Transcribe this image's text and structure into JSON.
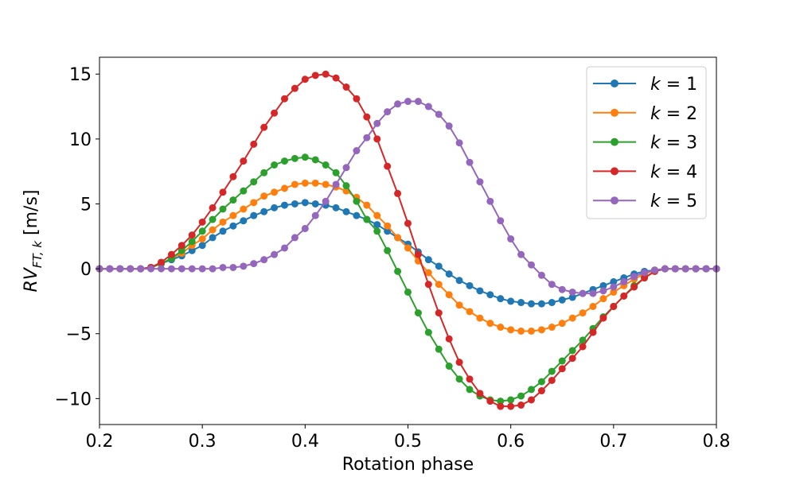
{
  "chart_data": {
    "type": "line",
    "title": "",
    "xlabel": "Rotation phase",
    "ylabel": "RV_{FT,k} [m/s]",
    "ylabel_parts": {
      "main": "RV",
      "sub": "FT, k",
      "unit": " [m/s]"
    },
    "xlim": [
      0.2,
      0.8
    ],
    "ylim": [
      -12,
      16.3
    ],
    "xticks": [
      0.2,
      0.3,
      0.4,
      0.5,
      0.6,
      0.7,
      0.8
    ],
    "xtick_labels": [
      "0.2",
      "0.3",
      "0.4",
      "0.5",
      "0.6",
      "0.7",
      "0.8"
    ],
    "yticks": [
      -10,
      -5,
      0,
      5,
      10,
      15
    ],
    "ytick_labels": [
      "−10",
      "−5",
      "0",
      "5",
      "10",
      "15"
    ],
    "grid": false,
    "legend_position": "top-right",
    "marker": "circle",
    "x": [
      0.2,
      0.21,
      0.22,
      0.23,
      0.24,
      0.25,
      0.26,
      0.27,
      0.28,
      0.29,
      0.3,
      0.31,
      0.32,
      0.33,
      0.34,
      0.35,
      0.36,
      0.37,
      0.38,
      0.39,
      0.4,
      0.41,
      0.42,
      0.43,
      0.44,
      0.45,
      0.46,
      0.47,
      0.48,
      0.49,
      0.5,
      0.51,
      0.52,
      0.53,
      0.54,
      0.55,
      0.56,
      0.57,
      0.58,
      0.59,
      0.6,
      0.61,
      0.62,
      0.63,
      0.64,
      0.65,
      0.66,
      0.67,
      0.68,
      0.69,
      0.7,
      0.71,
      0.72,
      0.73,
      0.74,
      0.75,
      0.76,
      0.77,
      0.78,
      0.79,
      0.8
    ],
    "series": [
      {
        "name": "k = 1",
        "legend_var": "k",
        "legend_value": "1",
        "color": "#1f77b4",
        "values": [
          0,
          0,
          0,
          0,
          0,
          0.1,
          0.4,
          0.7,
          1.0,
          1.4,
          1.8,
          2.4,
          2.9,
          3.3,
          3.7,
          4.1,
          4.4,
          4.7,
          4.9,
          5.0,
          5.1,
          5.0,
          4.9,
          4.7,
          4.4,
          4.1,
          3.8,
          3.4,
          2.9,
          2.4,
          1.9,
          1.3,
          0.7,
          0.2,
          -0.4,
          -0.9,
          -1.3,
          -1.7,
          -2.0,
          -2.3,
          -2.5,
          -2.6,
          -2.7,
          -2.7,
          -2.6,
          -2.4,
          -2.2,
          -1.9,
          -1.6,
          -1.3,
          -1.0,
          -0.7,
          -0.4,
          -0.2,
          -0.1,
          0,
          0,
          0,
          0,
          0,
          0
        ]
      },
      {
        "name": "k = 2",
        "legend_var": "k",
        "legend_value": "2",
        "color": "#ff7f0e",
        "values": [
          0,
          0,
          0,
          0,
          0,
          0.1,
          0.4,
          0.8,
          1.2,
          1.8,
          2.3,
          3.0,
          3.6,
          4.1,
          4.6,
          5.1,
          5.6,
          5.9,
          6.2,
          6.5,
          6.6,
          6.6,
          6.5,
          6.3,
          6.0,
          5.5,
          4.9,
          4.1,
          3.3,
          2.4,
          1.6,
          0.6,
          -0.3,
          -1.2,
          -2.0,
          -2.8,
          -3.3,
          -3.8,
          -4.2,
          -4.5,
          -4.7,
          -4.8,
          -4.8,
          -4.7,
          -4.5,
          -4.2,
          -3.8,
          -3.4,
          -2.9,
          -2.3,
          -1.8,
          -1.3,
          -0.8,
          -0.4,
          -0.1,
          0,
          0,
          0,
          0,
          0,
          0
        ]
      },
      {
        "name": "k = 3",
        "legend_var": "k",
        "legend_value": "3",
        "color": "#2ca02c",
        "values": [
          0,
          0,
          0,
          0,
          0,
          0.1,
          0.4,
          0.8,
          1.4,
          2.1,
          2.9,
          3.8,
          4.6,
          5.3,
          6.0,
          6.7,
          7.4,
          8.0,
          8.3,
          8.5,
          8.6,
          8.4,
          8.0,
          7.4,
          6.4,
          5.2,
          3.8,
          2.9,
          1.4,
          -0.2,
          -1.8,
          -3.4,
          -4.9,
          -6.2,
          -7.5,
          -8.5,
          -9.3,
          -9.8,
          -10.1,
          -10.2,
          -10.1,
          -9.8,
          -9.3,
          -8.7,
          -7.9,
          -7.1,
          -6.3,
          -5.5,
          -4.6,
          -3.7,
          -2.9,
          -2.1,
          -1.3,
          -0.7,
          -0.2,
          0,
          0,
          0,
          0,
          0,
          0
        ]
      },
      {
        "name": "k = 4",
        "legend_var": "k",
        "legend_value": "4",
        "color": "#d62728",
        "values": [
          0,
          0,
          0,
          0,
          0,
          0.1,
          0.5,
          1.1,
          1.8,
          2.6,
          3.6,
          4.7,
          5.9,
          7.1,
          8.3,
          9.6,
          10.9,
          12.0,
          13.1,
          13.9,
          14.6,
          14.9,
          15.0,
          14.7,
          14.0,
          13.1,
          11.7,
          10.0,
          7.9,
          5.8,
          3.5,
          1.1,
          -1.2,
          -3.4,
          -5.4,
          -7.2,
          -8.5,
          -9.6,
          -10.2,
          -10.6,
          -10.6,
          -10.5,
          -10.1,
          -9.4,
          -8.6,
          -7.7,
          -6.9,
          -6.0,
          -4.9,
          -3.8,
          -2.9,
          -2.1,
          -1.4,
          -0.7,
          -0.2,
          0,
          0,
          0,
          0,
          0,
          0
        ]
      },
      {
        "name": "k = 5",
        "legend_var": "k",
        "legend_value": "5",
        "color": "#9467bd",
        "values": [
          0,
          0,
          0,
          0,
          0,
          0,
          0,
          0,
          0,
          0,
          0,
          0,
          0.1,
          0.1,
          0.2,
          0.4,
          0.7,
          1.1,
          1.6,
          2.4,
          3.1,
          4.1,
          5.2,
          6.5,
          7.8,
          9.1,
          10.1,
          11.2,
          12.1,
          12.7,
          12.9,
          12.9,
          12.5,
          11.9,
          11.0,
          9.7,
          8.2,
          6.7,
          5.2,
          3.7,
          2.3,
          1.1,
          0.3,
          -0.5,
          -1.2,
          -1.6,
          -1.8,
          -1.9,
          -1.9,
          -1.7,
          -1.4,
          -1.0,
          -0.6,
          -0.3,
          -0.1,
          0,
          0,
          0,
          0,
          0,
          0
        ]
      }
    ]
  }
}
